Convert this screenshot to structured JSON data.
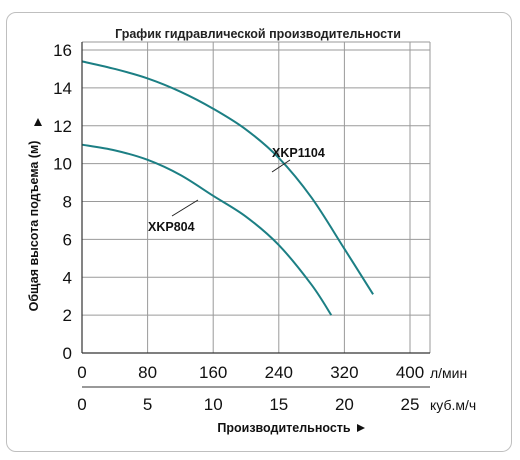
{
  "chart_data": {
    "type": "line",
    "title": "График гидравлической производительности",
    "xlabel": "Производительность",
    "ylabel": "Общая высота подъема (м)",
    "x_axes": {
      "primary": {
        "unit": "л/мин",
        "range": [
          0,
          400
        ],
        "ticks": [
          "0",
          "80",
          "160",
          "240",
          "320",
          "400"
        ]
      },
      "secondary": {
        "unit": "куб.м/ч",
        "range": [
          0,
          25
        ],
        "ticks": [
          "0",
          "5",
          "10",
          "15",
          "20",
          "25"
        ]
      }
    },
    "ylim": [
      0,
      16
    ],
    "yticks": [
      "0",
      "2",
      "4",
      "6",
      "8",
      "10",
      "12",
      "14",
      "16"
    ],
    "grid": true,
    "line_color": "#1c7f84",
    "series": [
      {
        "name": "XKP1104",
        "x": [
          0,
          40,
          80,
          120,
          160,
          200,
          240,
          280,
          320,
          355
        ],
        "y": [
          15.4,
          15.0,
          14.5,
          13.8,
          12.9,
          11.8,
          10.3,
          8.2,
          5.5,
          3.1
        ]
      },
      {
        "name": "XKP804",
        "x": [
          0,
          40,
          80,
          120,
          160,
          200,
          240,
          280,
          304
        ],
        "y": [
          11.0,
          10.7,
          10.2,
          9.4,
          8.3,
          7.2,
          5.7,
          3.6,
          2.0
        ]
      }
    ]
  }
}
